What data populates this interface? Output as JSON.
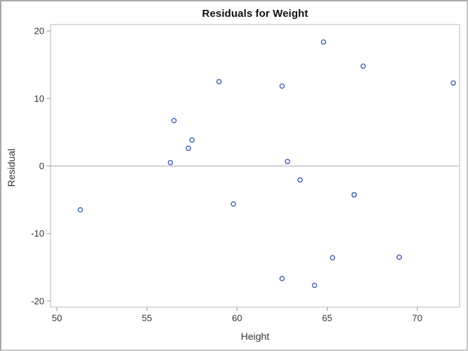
{
  "chart_data": {
    "type": "scatter",
    "title": "Residuals for Weight",
    "xlabel": "Height",
    "ylabel": "Residual",
    "xlim": [
      49.65,
      72.35
    ],
    "ylim": [
      -20.9,
      20.95
    ],
    "x_ticks": [
      50,
      55,
      60,
      65,
      70
    ],
    "y_ticks": [
      -20,
      -10,
      0,
      10,
      20
    ],
    "reference_line_y": 0,
    "grid": "off",
    "legend": "none",
    "marker": {
      "shape": "open-circle",
      "color": "#3458A8",
      "radius_px": 3.1
    },
    "points": [
      [
        51.3,
        -6.49
      ],
      [
        56.3,
        0.51
      ],
      [
        56.5,
        6.73
      ],
      [
        57.3,
        2.62
      ],
      [
        57.5,
        3.84
      ],
      [
        59.0,
        12.49
      ],
      [
        59.8,
        -5.63
      ],
      [
        62.5,
        11.84
      ],
      [
        62.5,
        -16.66
      ],
      [
        62.8,
        0.67
      ],
      [
        63.5,
        -2.06
      ],
      [
        64.3,
        -17.68
      ],
      [
        64.8,
        18.37
      ],
      [
        65.3,
        -13.58
      ],
      [
        66.5,
        -4.26
      ],
      [
        66.5,
        -4.26
      ],
      [
        67.0,
        14.79
      ],
      [
        69.0,
        -13.5
      ],
      [
        72.0,
        12.3
      ]
    ]
  },
  "style": {
    "wall_border_color": "#cccccc",
    "reference_line_color": "#c4c4c4",
    "tick_mark_color": "#a6a6a6",
    "tick_label_color": "#333333",
    "title_color": "#111111",
    "frame_border_color": "#b0b0b0",
    "background": "#ffffff"
  }
}
